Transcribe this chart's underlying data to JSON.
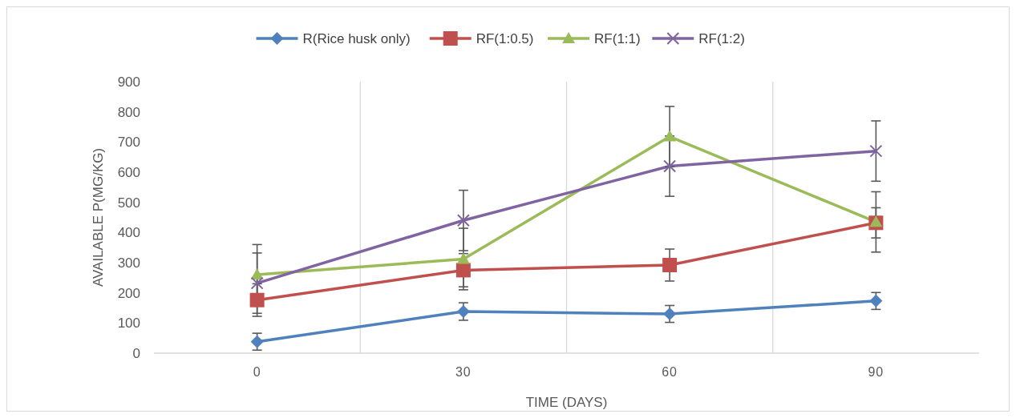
{
  "chart_data": {
    "type": "line",
    "xlabel": "TIME (DAYS)",
    "ylabel": "AVAILABLE P(MG/KG)",
    "categories": [
      "0",
      "30",
      "60",
      "90"
    ],
    "ylim": [
      0,
      900
    ],
    "yticks": [
      0,
      100,
      200,
      300,
      400,
      500,
      600,
      700,
      800,
      900
    ],
    "grid": "x",
    "legend": "top",
    "line_style": "solid",
    "series": [
      {
        "name": "R(Rice husk only)",
        "color": "#4f81bd",
        "marker": "diamond",
        "values": [
          38,
          138,
          130,
          173
        ],
        "errors": [
          28,
          29,
          28,
          28
        ]
      },
      {
        "name": "RF(1:0.5)",
        "color": "#c0504d",
        "marker": "square",
        "values": [
          176,
          275,
          292,
          432
        ],
        "errors": [
          54,
          55,
          53,
          50
        ]
      },
      {
        "name": "RF(1:1)",
        "color": "#9bbb59",
        "marker": "triangle",
        "values": [
          260,
          312,
          718,
          435
        ],
        "errors": [
          100,
          102,
          100,
          100
        ]
      },
      {
        "name": "RF(1:2)",
        "color": "#8064a2",
        "marker": "cross",
        "values": [
          232,
          440,
          620,
          670
        ],
        "errors": [
          100,
          100,
          100,
          100
        ]
      }
    ]
  }
}
